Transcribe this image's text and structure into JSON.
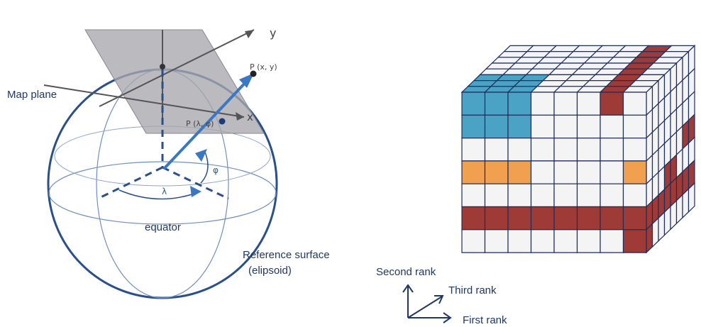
{
  "projection": {
    "map_plane_label": "Map plane",
    "axis_x_label": "x",
    "axis_y_label": "y",
    "point_map_label": "P (x, y)",
    "point_sphere_label": "P (λ, φ)",
    "phi_label": "φ",
    "lambda_label": "λ",
    "equator_label": "equator",
    "reference_surface_label": "Reference surface",
    "reference_surface_sub": "(elipsoid)"
  },
  "tensor": {
    "rank_axes": {
      "second": "Second rank",
      "third": "Third rank",
      "first": "First rank"
    },
    "front_grid": {
      "cols": 8,
      "rows": 7
    },
    "side_grid": {
      "cols": 8,
      "rows": 7
    },
    "top_grid": {
      "cols": 8,
      "rows": 8
    },
    "colors": {
      "blue": "#4aa3c4",
      "orange": "#f0a04e",
      "maroon": "#9e3b36",
      "empty": "#f4f4f5",
      "line": "#1d2d5c"
    },
    "front_colored": [
      {
        "r": 0,
        "c": 0,
        "color": "blue"
      },
      {
        "r": 0,
        "c": 1,
        "color": "blue"
      },
      {
        "r": 0,
        "c": 2,
        "color": "blue"
      },
      {
        "r": 1,
        "c": 0,
        "color": "blue"
      },
      {
        "r": 1,
        "c": 1,
        "color": "blue"
      },
      {
        "r": 1,
        "c": 2,
        "color": "blue"
      },
      {
        "r": 0,
        "c": 6,
        "color": "maroon"
      },
      {
        "r": 3,
        "c": 0,
        "color": "orange"
      },
      {
        "r": 3,
        "c": 1,
        "color": "orange"
      },
      {
        "r": 3,
        "c": 2,
        "color": "orange"
      },
      {
        "r": 3,
        "c": 7,
        "color": "orange"
      },
      {
        "r": 5,
        "c": 0,
        "color": "maroon"
      },
      {
        "r": 5,
        "c": 1,
        "color": "maroon"
      },
      {
        "r": 5,
        "c": 2,
        "color": "maroon"
      },
      {
        "r": 5,
        "c": 3,
        "color": "maroon"
      },
      {
        "r": 5,
        "c": 4,
        "color": "maroon"
      },
      {
        "r": 5,
        "c": 5,
        "color": "maroon"
      },
      {
        "r": 5,
        "c": 6,
        "color": "maroon"
      },
      {
        "r": 5,
        "c": 7,
        "color": "maroon"
      },
      {
        "r": 6,
        "c": 7,
        "color": "maroon"
      }
    ],
    "top_colored": [
      {
        "r": 5,
        "c": 0,
        "color": "blue"
      },
      {
        "r": 5,
        "c": 1,
        "color": "blue"
      },
      {
        "r": 5,
        "c": 2,
        "color": "blue"
      },
      {
        "r": 6,
        "c": 0,
        "color": "blue"
      },
      {
        "r": 6,
        "c": 1,
        "color": "blue"
      },
      {
        "r": 6,
        "c": 2,
        "color": "blue"
      },
      {
        "r": 7,
        "c": 0,
        "color": "blue"
      },
      {
        "r": 7,
        "c": 1,
        "color": "blue"
      },
      {
        "r": 7,
        "c": 2,
        "color": "blue"
      },
      {
        "r": 0,
        "c": 6,
        "color": "maroon"
      },
      {
        "r": 1,
        "c": 6,
        "color": "maroon"
      },
      {
        "r": 2,
        "c": 6,
        "color": "maroon"
      },
      {
        "r": 3,
        "c": 6,
        "color": "maroon"
      },
      {
        "r": 4,
        "c": 6,
        "color": "maroon"
      },
      {
        "r": 5,
        "c": 6,
        "color": "maroon"
      },
      {
        "r": 6,
        "c": 6,
        "color": "maroon"
      },
      {
        "r": 7,
        "c": 6,
        "color": "maroon"
      }
    ],
    "side_colored": [
      {
        "r": 5,
        "c": 0,
        "color": "maroon"
      },
      {
        "r": 5,
        "c": 1,
        "color": "maroon"
      },
      {
        "r": 5,
        "c": 2,
        "color": "maroon"
      },
      {
        "r": 5,
        "c": 3,
        "color": "maroon"
      },
      {
        "r": 5,
        "c": 4,
        "color": "maroon"
      },
      {
        "r": 5,
        "c": 5,
        "color": "maroon"
      },
      {
        "r": 5,
        "c": 6,
        "color": "maroon"
      },
      {
        "r": 5,
        "c": 7,
        "color": "maroon"
      },
      {
        "r": 6,
        "c": 0,
        "color": "maroon"
      },
      {
        "r": 4,
        "c": 3,
        "color": "maroon"
      },
      {
        "r": 4,
        "c": 4,
        "color": "maroon"
      },
      {
        "r": 3,
        "c": 6,
        "color": "maroon"
      },
      {
        "r": 3,
        "c": 7,
        "color": "maroon"
      }
    ]
  }
}
